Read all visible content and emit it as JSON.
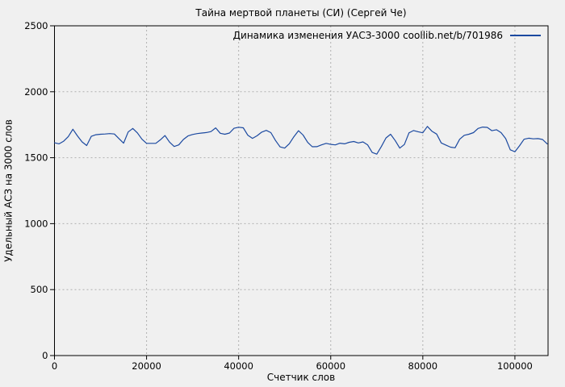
{
  "style": {
    "background": "#f0f0f0",
    "frame_color": "#000000",
    "grid_color": "#b0b0b0",
    "series_color": "#1b49a0"
  },
  "chart_data": {
    "type": "line",
    "title": "Тайна мертвой планеты (СИ) (Сергей Че)",
    "xlabel": "Счетчик слов",
    "ylabel": "Удельный АСЗ на 3000 слов",
    "xlim": [
      0,
      107200
    ],
    "ylim": [
      0,
      2500
    ],
    "xticks": [
      0,
      20000,
      40000,
      60000,
      80000,
      100000
    ],
    "yticks": [
      0,
      500,
      1000,
      1500,
      2000,
      2500
    ],
    "grid": true,
    "legend": {
      "label": "Динамика изменения УАСЗ-3000 coollib.net/b/701986",
      "position": "top-right"
    },
    "series": [
      {
        "name": "Динамика изменения УАСЗ-3000 coollib.net/b/701986",
        "color": "#1b49a0",
        "x": [
          0,
          1000,
          2000,
          3000,
          4000,
          5000,
          6000,
          7000,
          8000,
          9000,
          10000,
          11000,
          12000,
          13000,
          14000,
          15000,
          16000,
          17000,
          18000,
          19000,
          20000,
          21000,
          22000,
          23000,
          24000,
          25000,
          26000,
          27000,
          28000,
          29000,
          30000,
          31000,
          32000,
          33000,
          34000,
          35000,
          36000,
          37000,
          38000,
          39000,
          40000,
          41000,
          42000,
          43000,
          44000,
          45000,
          46000,
          47000,
          48000,
          49000,
          50000,
          51000,
          52000,
          53000,
          54000,
          55000,
          56000,
          57000,
          58000,
          59000,
          60000,
          61000,
          62000,
          63000,
          64000,
          65000,
          66000,
          67000,
          68000,
          69000,
          70000,
          71000,
          72000,
          73000,
          74000,
          75000,
          76000,
          77000,
          78000,
          79000,
          80000,
          81000,
          82000,
          83000,
          84000,
          85000,
          86000,
          87000,
          88000,
          89000,
          90000,
          91000,
          92000,
          93000,
          94000,
          95000,
          96000,
          97000,
          98000,
          99000,
          100000,
          101000,
          102000,
          103000,
          104000,
          105000,
          106000,
          107000
        ],
        "y": [
          1613,
          1605,
          1625,
          1660,
          1716,
          1665,
          1620,
          1592,
          1662,
          1674,
          1678,
          1680,
          1683,
          1680,
          1645,
          1610,
          1695,
          1722,
          1688,
          1640,
          1609,
          1609,
          1609,
          1636,
          1668,
          1618,
          1585,
          1597,
          1638,
          1665,
          1676,
          1683,
          1687,
          1691,
          1698,
          1726,
          1685,
          1678,
          1687,
          1723,
          1731,
          1727,
          1670,
          1647,
          1666,
          1694,
          1707,
          1690,
          1631,
          1582,
          1573,
          1606,
          1659,
          1705,
          1672,
          1616,
          1583,
          1584,
          1597,
          1609,
          1601,
          1597,
          1610,
          1605,
          1617,
          1623,
          1612,
          1620,
          1598,
          1540,
          1527,
          1585,
          1650,
          1678,
          1630,
          1573,
          1600,
          1688,
          1706,
          1697,
          1689,
          1737,
          1700,
          1679,
          1612,
          1596,
          1580,
          1575,
          1640,
          1670,
          1678,
          1690,
          1722,
          1732,
          1730,
          1705,
          1712,
          1690,
          1645,
          1560,
          1545,
          1590,
          1640,
          1648,
          1643,
          1645,
          1638,
          1605
        ]
      }
    ]
  }
}
